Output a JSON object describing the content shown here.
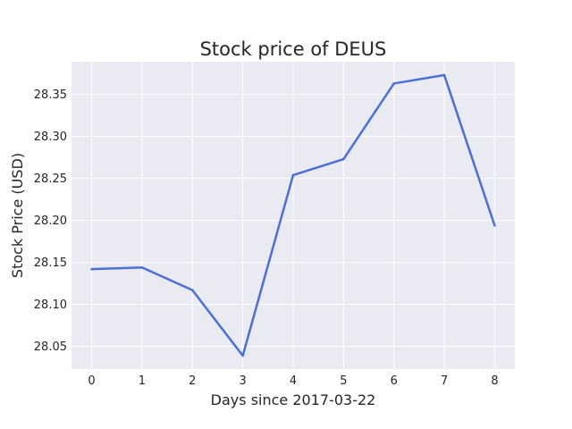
{
  "chart_data": {
    "type": "line",
    "title": "Stock price of DEUS",
    "xlabel": "Days since 2017-03-22",
    "ylabel": "Stock Price (USD)",
    "x": [
      0,
      1,
      2,
      3,
      4,
      5,
      6,
      7,
      8
    ],
    "series": [
      {
        "values": [
          28.142,
          28.144,
          28.117,
          28.039,
          28.254,
          28.273,
          28.363,
          28.373,
          28.194
        ],
        "color": "#4c6fd6"
      }
    ],
    "xlim": [
      -0.4,
      8.4
    ],
    "ylim": [
      28.023,
      28.389
    ],
    "xticks": [
      "0",
      "1",
      "2",
      "3",
      "4",
      "5",
      "6",
      "7",
      "8"
    ],
    "yticks": [
      "28.05",
      "28.10",
      "28.15",
      "28.20",
      "28.25",
      "28.30",
      "28.35"
    ],
    "grid": true,
    "background": "#eaeaf2",
    "grid_color": "#ffffff"
  }
}
